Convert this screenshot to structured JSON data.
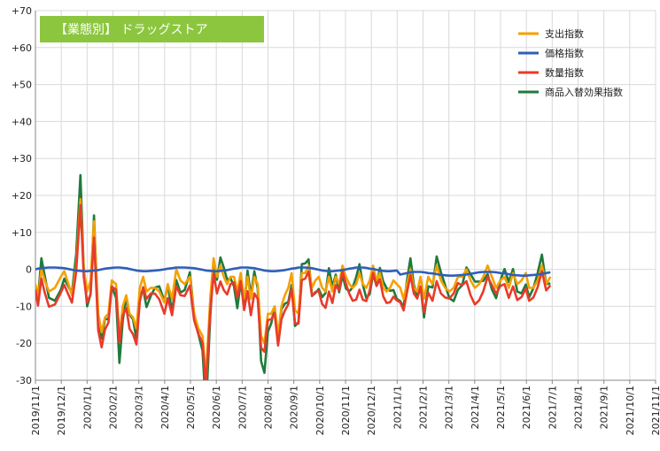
{
  "chart_data": {
    "type": "line",
    "title": "【業態別】 ドラッグストア",
    "title_bg_color": "#8cc63f",
    "ylim": [
      -30,
      70
    ],
    "yticks": [
      -30,
      -20,
      -10,
      0,
      10,
      20,
      30,
      40,
      50,
      60,
      70
    ],
    "ytick_labels": [
      "-30",
      "-20",
      "-10",
      "0",
      "+10",
      "+20",
      "+30",
      "+40",
      "+50",
      "+60",
      "+70"
    ],
    "grid": true,
    "legend_position": "top-right",
    "x_start": "2019-11-01",
    "x_end": "2021-11-01",
    "x_tick_labels": [
      "2019/11/1",
      "2019/12/1",
      "2020/1/1",
      "2020/2/1",
      "2020/3/1",
      "2020/4/1",
      "2020/5/1",
      "2020/6/1",
      "2020/7/1",
      "2020/8/1",
      "2020/9/1",
      "2020/10/1",
      "2020/11/1",
      "2020/12/1",
      "2021/1/1",
      "2021/2/1",
      "2021/3/1",
      "2021/4/1",
      "2021/5/1",
      "2021/6/1",
      "2021/7/1",
      "2021/8/1",
      "2021/9/1",
      "2021/10/1",
      "2021/11/1"
    ],
    "series": [
      {
        "name": "支出指数",
        "color": "#f5a000",
        "points": [
          [
            "2019-11-01",
            -4
          ],
          [
            "2019-11-04",
            -8
          ],
          [
            "2019-11-08",
            0
          ],
          [
            "2019-11-12",
            -3
          ],
          [
            "2019-11-17",
            -6
          ],
          [
            "2019-11-24",
            -5
          ],
          [
            "2019-12-01",
            -2
          ],
          [
            "2019-12-05",
            -0.5
          ],
          [
            "2019-12-10",
            -4
          ],
          [
            "2019-12-14",
            -7
          ],
          [
            "2019-12-19",
            1
          ],
          [
            "2019-12-24",
            19
          ],
          [
            "2019-12-28",
            0
          ],
          [
            "2020-01-01",
            -6
          ],
          [
            "2020-01-05",
            -3
          ],
          [
            "2020-01-09",
            13
          ],
          [
            "2020-01-14",
            -12
          ],
          [
            "2020-01-18",
            -17
          ],
          [
            "2020-01-22",
            -13
          ],
          [
            "2020-01-26",
            -12
          ],
          [
            "2020-01-30",
            -3
          ],
          [
            "2020-02-04",
            -4
          ],
          [
            "2020-02-08",
            -18
          ],
          [
            "2020-02-12",
            -10
          ],
          [
            "2020-02-16",
            -7
          ],
          [
            "2020-02-20",
            -12
          ],
          [
            "2020-02-24",
            -13
          ],
          [
            "2020-02-28",
            -16
          ],
          [
            "2020-03-03",
            -5
          ],
          [
            "2020-03-07",
            -2
          ],
          [
            "2020-03-11",
            -6
          ],
          [
            "2020-03-16",
            -5
          ],
          [
            "2020-03-21",
            -5
          ],
          [
            "2020-03-26",
            -6
          ],
          [
            "2020-04-01",
            -9
          ],
          [
            "2020-04-05",
            -4
          ],
          [
            "2020-04-10",
            -8
          ],
          [
            "2020-04-15",
            0
          ],
          [
            "2020-04-20",
            -3
          ],
          [
            "2020-04-25",
            -4
          ],
          [
            "2020-05-01",
            -2
          ],
          [
            "2020-05-06",
            -12
          ],
          [
            "2020-05-11",
            -16
          ],
          [
            "2020-05-16",
            -18
          ],
          [
            "2020-05-20",
            -29
          ],
          [
            "2020-05-25",
            -8
          ],
          [
            "2020-05-29",
            3
          ],
          [
            "2020-06-02",
            -2
          ],
          [
            "2020-06-06",
            1
          ],
          [
            "2020-06-10",
            -2
          ],
          [
            "2020-06-14",
            -4
          ],
          [
            "2020-06-18",
            -2
          ],
          [
            "2020-06-22",
            -2
          ],
          [
            "2020-06-26",
            -6
          ],
          [
            "2020-06-30",
            -1
          ],
          [
            "2020-07-04",
            -8
          ],
          [
            "2020-07-08",
            -2
          ],
          [
            "2020-07-12",
            -8
          ],
          [
            "2020-07-16",
            -2
          ],
          [
            "2020-07-20",
            -4
          ],
          [
            "2020-07-24",
            -18
          ],
          [
            "2020-07-28",
            -20
          ],
          [
            "2020-08-01",
            -12
          ],
          [
            "2020-08-05",
            -12
          ],
          [
            "2020-08-09",
            -10
          ],
          [
            "2020-08-13",
            -18
          ],
          [
            "2020-08-17",
            -10
          ],
          [
            "2020-08-21",
            -7
          ],
          [
            "2020-08-25",
            -5
          ],
          [
            "2020-08-29",
            -1
          ],
          [
            "2020-09-02",
            -11
          ],
          [
            "2020-09-06",
            -12
          ],
          [
            "2020-09-10",
            -1
          ],
          [
            "2020-09-14",
            -1
          ],
          [
            "2020-09-18",
            1
          ],
          [
            "2020-09-22",
            -5
          ],
          [
            "2020-09-26",
            -3
          ],
          [
            "2020-09-30",
            -2
          ],
          [
            "2020-10-04",
            -5
          ],
          [
            "2020-10-08",
            -6
          ],
          [
            "2020-10-12",
            -2
          ],
          [
            "2020-10-16",
            -6
          ],
          [
            "2020-10-20",
            -2
          ],
          [
            "2020-10-24",
            -4
          ],
          [
            "2020-10-28",
            1
          ],
          [
            "2020-11-01",
            -2
          ],
          [
            "2020-11-05",
            -4
          ],
          [
            "2020-11-09",
            -5
          ],
          [
            "2020-11-13",
            -4
          ],
          [
            "2020-11-17",
            -1
          ],
          [
            "2020-11-21",
            -4
          ],
          [
            "2020-11-25",
            -5
          ],
          [
            "2020-11-29",
            -3
          ],
          [
            "2020-12-03",
            1
          ],
          [
            "2020-12-07",
            -3
          ],
          [
            "2020-12-11",
            -1
          ],
          [
            "2020-12-15",
            -5
          ],
          [
            "2020-12-19",
            -6
          ],
          [
            "2020-12-23",
            -5
          ],
          [
            "2020-12-27",
            -3
          ],
          [
            "2020-12-31",
            -4
          ],
          [
            "2021-01-04",
            -5
          ],
          [
            "2021-01-08",
            -8
          ],
          [
            "2021-01-12",
            -4
          ],
          [
            "2021-01-16",
            0
          ],
          [
            "2021-01-20",
            -5
          ],
          [
            "2021-01-24",
            -6
          ],
          [
            "2021-01-28",
            -2
          ],
          [
            "2021-02-01",
            -8
          ],
          [
            "2021-02-06",
            -2
          ],
          [
            "2021-02-11",
            -4
          ],
          [
            "2021-02-16",
            1
          ],
          [
            "2021-02-21",
            -3
          ],
          [
            "2021-02-26",
            -5
          ],
          [
            "2021-03-03",
            -6
          ],
          [
            "2021-03-08",
            -5
          ],
          [
            "2021-03-13",
            -2
          ],
          [
            "2021-03-18",
            -2
          ],
          [
            "2021-03-23",
            0
          ],
          [
            "2021-03-28",
            -3
          ],
          [
            "2021-04-02",
            -5
          ],
          [
            "2021-04-07",
            -4
          ],
          [
            "2021-04-12",
            -2
          ],
          [
            "2021-04-17",
            1
          ],
          [
            "2021-04-22",
            -2
          ],
          [
            "2021-04-27",
            -5
          ],
          [
            "2021-05-02",
            -3
          ],
          [
            "2021-05-07",
            -2
          ],
          [
            "2021-05-12",
            -5
          ],
          [
            "2021-05-17",
            -1
          ],
          [
            "2021-05-22",
            -4
          ],
          [
            "2021-05-27",
            -3
          ],
          [
            "2021-06-01",
            -1
          ],
          [
            "2021-06-05",
            -5
          ],
          [
            "2021-06-10",
            -5
          ],
          [
            "2021-06-15",
            -3
          ],
          [
            "2021-06-20",
            1
          ],
          [
            "2021-06-25",
            -4
          ],
          [
            "2021-06-30",
            -2
          ]
        ]
      },
      {
        "name": "価格指数",
        "color": "#2f5fb8",
        "points": []
      },
      {
        "name": "数量指数",
        "color": "#e83b2a",
        "points": []
      },
      {
        "name": "商品入替効果指数",
        "color": "#1f7a3c",
        "points": []
      }
    ]
  }
}
